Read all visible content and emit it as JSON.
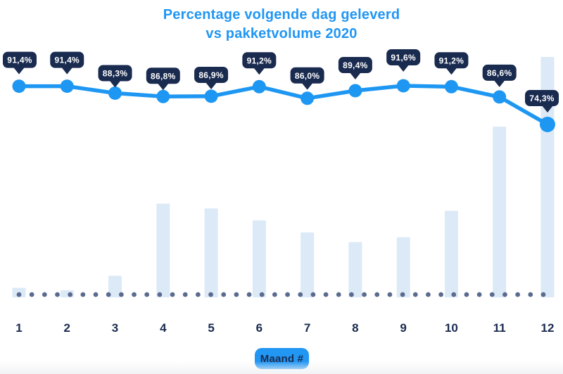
{
  "title": {
    "line1": "Percentage volgende dag geleverd",
    "line2": "vs pakketvolume 2020"
  },
  "xaxis": {
    "label_badge": "Maand #",
    "tick_labels": [
      "1",
      "2",
      "3",
      "4",
      "5",
      "6",
      "7",
      "8",
      "9",
      "10",
      "11",
      "12"
    ]
  },
  "colors": {
    "accent_blue": "#2196f3",
    "line_blue": "#1e97f2",
    "navy": "#1a2b50",
    "badge_bg": "#1a2b50",
    "badge_text": "#ffffff",
    "bar_light_blue": "#dce9f7",
    "dot_gray": "#5a6b8e"
  },
  "chart_data": {
    "type": "line+bar",
    "title": "Percentage volgende dag geleverd vs pakketvolume 2020",
    "categories": [
      "1",
      "2",
      "3",
      "4",
      "5",
      "6",
      "7",
      "8",
      "9",
      "10",
      "11",
      "12"
    ],
    "xlabel": "Maand #",
    "grid": false,
    "legend": "none",
    "baseline": {
      "style": "dotted",
      "color": "#5a6b8e"
    },
    "series": [
      {
        "name": "Percentage volgende dag geleverd",
        "type": "line",
        "unit": "%",
        "values": [
          91.4,
          91.4,
          88.3,
          86.8,
          86.9,
          91.2,
          86.0,
          89.4,
          91.6,
          91.2,
          86.6,
          74.3
        ],
        "point_labels": [
          "91,4%",
          "91,4%",
          "88,3%",
          "86,8%",
          "86,9%",
          "91,2%",
          "86,0%",
          "89,4%",
          "91,6%",
          "91,2%",
          "86,6%",
          "74,3%"
        ],
        "ylim_hint": [
          70,
          95
        ],
        "color": "#1e97f2"
      },
      {
        "name": "Pakketvolume 2020",
        "type": "bar",
        "unit": "relative, max month = 100",
        "values": [
          4,
          3,
          9,
          39,
          37,
          32,
          27,
          23,
          25,
          36,
          71,
          100
        ],
        "color": "#dce9f7"
      }
    ]
  }
}
